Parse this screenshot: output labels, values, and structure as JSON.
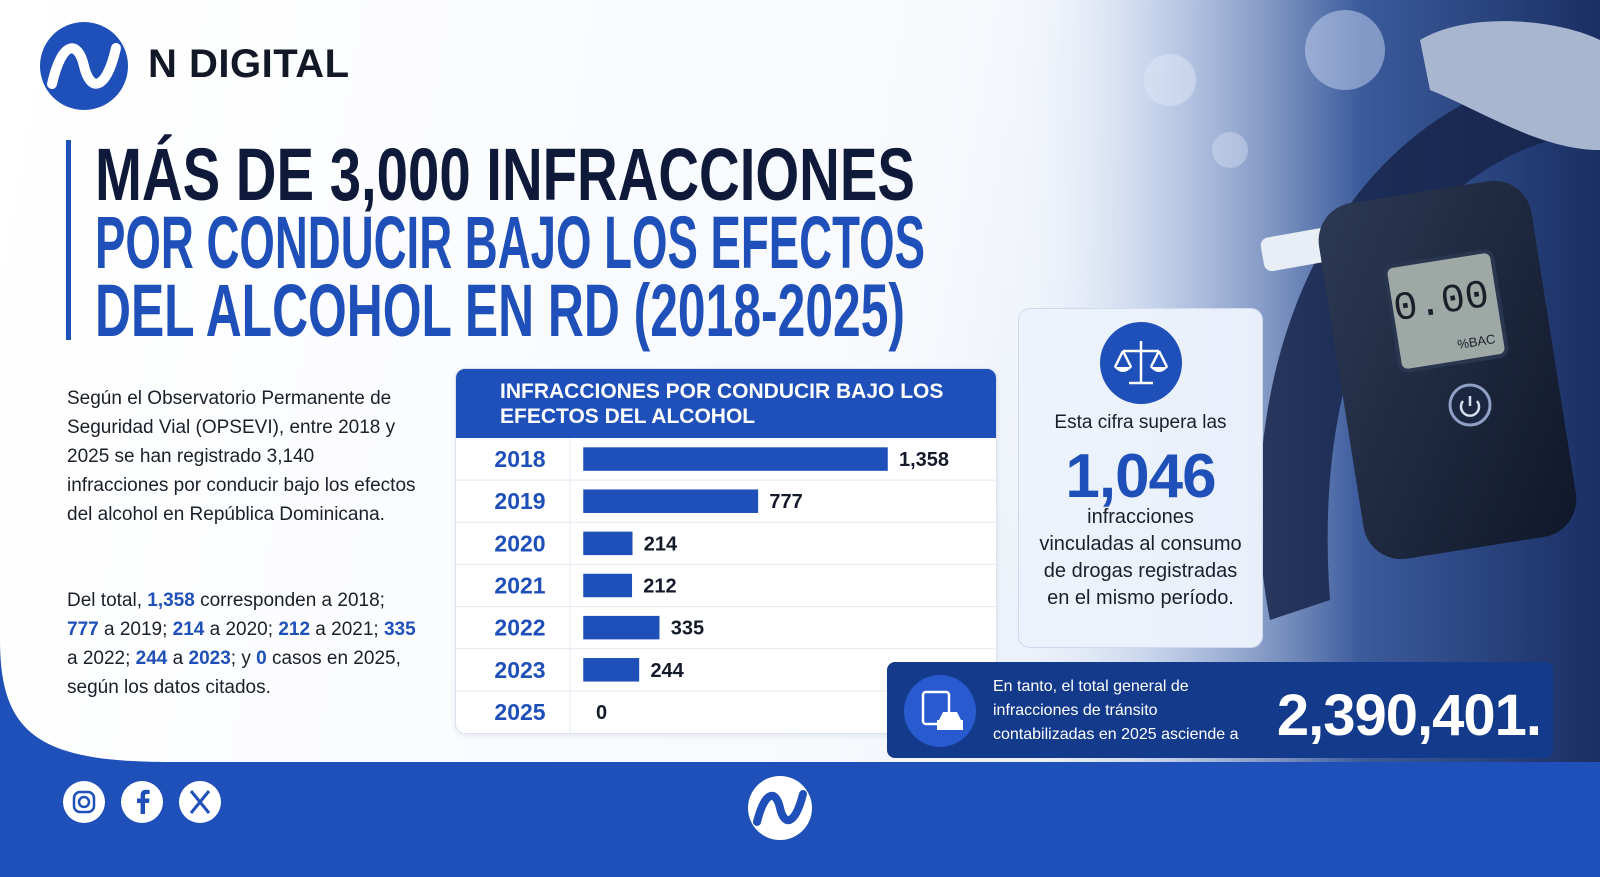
{
  "header": {
    "brand": "N DIGITAL"
  },
  "headline": {
    "line1": "MÁS DE 3,000 INFRACCIONES",
    "line2": "POR CONDUCIR BAJO LOS EFECTOS",
    "line3": "DEL ALCOHOL EN RD (2018-2025)"
  },
  "body": {
    "paragraph1": "Según el Observatorio Permanente de Seguridad Vial (OPSEVI), entre 2018 y 2025 se han registrado 3,140 infracciones por conducir bajo los efectos del alcohol en República Dominicana.",
    "paragraph2": [
      "Del total, ",
      "1,358",
      " corresponden a 2018; ",
      "777",
      " a 2019; ",
      "214",
      " a 2020; ",
      "212",
      " a 2021; ",
      "335",
      " a 2022; ",
      "244",
      " a ",
      "2023",
      "; y ",
      "0",
      " casos en 2025, según los datos citados."
    ]
  },
  "chart_data": {
    "type": "bar",
    "orientation": "horizontal",
    "title": "INFRACCIONES POR CONDUCIR BAJO LOS EFECTOS DEL ALCOHOL",
    "categories": [
      "2018",
      "2019",
      "2020",
      "2021",
      "2022",
      "2023",
      "2025"
    ],
    "values": [
      1358,
      777,
      214,
      212,
      335,
      244,
      0
    ],
    "value_labels": [
      "1,358",
      "777",
      "214",
      "212",
      "335",
      "244",
      "0"
    ],
    "color": "#1f4fb8"
  },
  "device": {
    "reading": "0.00",
    "unit": "%BAC"
  },
  "drugs_callout": {
    "intro": "Esta cifra supera las",
    "value": "1,046",
    "text": "infracciones vinculadas al consumo de drogas registradas en el mismo período."
  },
  "total_callout": {
    "text": "En tanto, el total general de infracciones de tránsito contabilizadas en 2025 asciende a",
    "value": "2,390,401."
  }
}
